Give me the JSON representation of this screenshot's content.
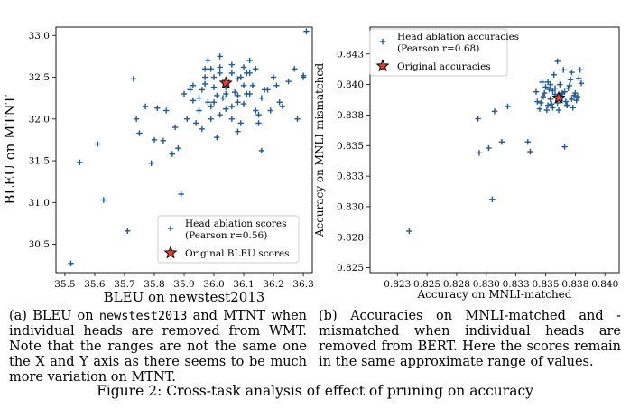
{
  "chart_data": [
    {
      "type": "scatter",
      "xlabel": "BLEU on newstest2013",
      "ylabel": "BLEU on MTNT",
      "xlim": [
        35.47,
        36.33
      ],
      "ylim": [
        30.16,
        33.1
      ],
      "xticks": [
        "35.5",
        "35.6",
        "35.7",
        "35.8",
        "35.9",
        "36.0",
        "36.1",
        "36.2",
        "36.3"
      ],
      "yticks": [
        "30.5",
        "31.0",
        "31.5",
        "32.0",
        "32.5",
        "33.0"
      ],
      "xtick_values": [
        35.5,
        35.6,
        35.7,
        35.8,
        35.9,
        36.0,
        36.1,
        36.2,
        36.3
      ],
      "ytick_values": [
        30.5,
        31.0,
        31.5,
        32.0,
        32.5,
        33.0
      ],
      "legend": {
        "position": "lower-right",
        "ablation_label_1": "Head ablation scores",
        "ablation_label_2": "(Pearson r=0.56)",
        "original_label": "Original BLEU scores"
      },
      "series": [
        {
          "name": "Head ablation scores (Pearson r=0.56)",
          "marker": "plus",
          "x": [
            35.52,
            35.55,
            35.61,
            35.63,
            35.71,
            35.73,
            35.74,
            35.75,
            35.77,
            35.79,
            35.8,
            35.81,
            35.83,
            35.84,
            35.86,
            35.87,
            35.88,
            35.89,
            35.9,
            35.91,
            35.93,
            35.94,
            35.95,
            35.96,
            35.97,
            35.98,
            35.99,
            36.0,
            36.02,
            36.04,
            36.06,
            36.08,
            36.1,
            36.12,
            36.14,
            36.16,
            36.18,
            36.2,
            36.22,
            36.23,
            36.25,
            36.28,
            36.3,
            36.31,
            36.3,
            36.27,
            36.15,
            36.08,
            36.01,
            35.95,
            35.92,
            35.98,
            36.02,
            36.06,
            36.11,
            36.16,
            36.19,
            36.21,
            36.14,
            36.09,
            36.03,
            35.99,
            35.96,
            35.93,
            35.97,
            36.0,
            36.04,
            36.08,
            36.12,
            36.17,
            36.06,
            36.01,
            36.1,
            36.13,
            36.05,
            35.99,
            36.07,
            36.02,
            36.09,
            36.15,
            36.11,
            36.04,
            36.0,
            35.97,
            36.03,
            36.08,
            36.12,
            36.06,
            36.02,
            36.1
          ],
          "y": [
            30.27,
            31.48,
            31.7,
            31.03,
            30.66,
            32.48,
            32.0,
            31.83,
            32.15,
            31.47,
            31.75,
            32.13,
            31.74,
            32.1,
            31.58,
            31.9,
            31.65,
            31.1,
            32.3,
            32.0,
            32.4,
            31.95,
            32.1,
            32.35,
            32.6,
            32.2,
            32.15,
            32.5,
            32.05,
            32.3,
            32.55,
            32.2,
            32.4,
            32.7,
            32.1,
            31.62,
            32.35,
            32.5,
            32.2,
            32.15,
            32.45,
            32.0,
            32.52,
            33.05,
            32.5,
            32.6,
            31.95,
            31.85,
            31.78,
            32.25,
            32.35,
            32.7,
            32.75,
            32.0,
            32.3,
            32.25,
            32.1,
            32.4,
            32.6,
            32.5,
            32.45,
            32.0,
            31.88,
            32.22,
            32.5,
            32.38,
            32.12,
            32.28,
            32.55,
            32.35,
            32.65,
            32.28,
            32.18,
            32.4,
            32.45,
            32.6,
            32.32,
            32.62,
            31.95,
            32.05,
            32.55,
            32.38,
            32.2,
            32.42,
            32.25,
            32.48,
            32.3,
            32.15,
            32.55,
            32.62
          ]
        },
        {
          "name": "Original BLEU scores",
          "marker": "star",
          "x": [
            36.04
          ],
          "y": [
            32.43
          ]
        }
      ]
    },
    {
      "type": "scatter",
      "xlabel": "Accuracy on MNLI-matched",
      "ylabel": "Accuracy on MNLI-mismatched",
      "xlim": [
        0.8202,
        0.8412
      ],
      "ylim": [
        0.8246,
        0.8447
      ],
      "xticks": [
        "0.823",
        "0.825",
        "0.828",
        "0.830",
        "0.833",
        "0.835",
        "0.838",
        "0.840"
      ],
      "yticks": [
        "0.825",
        "0.828",
        "0.830",
        "0.833",
        "0.835",
        "0.838",
        "0.840",
        "0.843"
      ],
      "xtick_values": [
        0.8225,
        0.825,
        0.8275,
        0.83,
        0.8325,
        0.835,
        0.8375,
        0.84
      ],
      "ytick_values": [
        0.825,
        0.8275,
        0.83,
        0.8325,
        0.835,
        0.8375,
        0.84,
        0.8425
      ],
      "legend": {
        "position": "upper-left",
        "ablation_label_1": "Head ablation accuracies",
        "ablation_label_2": "(Pearson r=0.68)",
        "original_label": "Original accuracies"
      },
      "series": [
        {
          "name": "Head ablation accuracies (Pearson r=0.68)",
          "marker": "plus",
          "x": [
            0.8235,
            0.8293,
            0.8294,
            0.8302,
            0.8305,
            0.8307,
            0.8313,
            0.8318,
            0.8335,
            0.8337,
            0.8342,
            0.8346,
            0.8348,
            0.835,
            0.8352,
            0.8354,
            0.8356,
            0.8358,
            0.836,
            0.8362,
            0.8364,
            0.8366,
            0.8368,
            0.837,
            0.8372,
            0.8374,
            0.8376,
            0.8378,
            0.838,
            0.8353,
            0.8357,
            0.8361,
            0.8365,
            0.8369,
            0.8373,
            0.8355,
            0.8359,
            0.8363,
            0.8367,
            0.8371,
            0.8349,
            0.8351,
            0.8345,
            0.8375,
            0.8379,
            0.8366,
            0.8358,
            0.8362,
            0.8356,
            0.8368,
            0.836,
            0.8364,
            0.8352,
            0.8372,
            0.8354,
            0.8347,
            0.8377,
            0.8343
          ],
          "y": [
            0.828,
            0.8372,
            0.8344,
            0.8348,
            0.8306,
            0.8378,
            0.8353,
            0.8382,
            0.8353,
            0.8345,
            0.8394,
            0.8385,
            0.839,
            0.8398,
            0.8402,
            0.8388,
            0.8395,
            0.8392,
            0.8385,
            0.84,
            0.8389,
            0.8394,
            0.8383,
            0.8399,
            0.841,
            0.8391,
            0.8387,
            0.8405,
            0.8401,
            0.8396,
            0.8408,
            0.8379,
            0.8412,
            0.8397,
            0.8381,
            0.8384,
            0.8389,
            0.8392,
            0.8386,
            0.8404,
            0.8393,
            0.8379,
            0.838,
            0.8393,
            0.8412,
            0.8349,
            0.8397,
            0.8387,
            0.8381,
            0.8383,
            0.8419,
            0.8393,
            0.8383,
            0.8388,
            0.84,
            0.8402,
            0.839,
            0.8386
          ]
        },
        {
          "name": "Original accuracies",
          "marker": "star",
          "x": [
            0.8361
          ],
          "y": [
            0.8389
          ]
        }
      ]
    }
  ],
  "captions": {
    "a_prefix": "(a)  BLEU on ",
    "a_mono1": "newstest2013",
    "a_mid": " and MTNT when individual heads are removed from WMT. Note that the ranges are not the same one the X and Y axis as there seems to be much more variation on MTNT.",
    "b_text": "(b)  Accuracies on MNLI-matched and -mismatched when individual heads are removed from BERT. Here the scores remain in the same approximate range of values.",
    "figure": "Figure 2: Cross-task analysis of effect of pruning on accuracy"
  },
  "colors": {
    "marker": "#1f5a96",
    "star_fill": "#e8402f",
    "star_edge": "#000000"
  }
}
